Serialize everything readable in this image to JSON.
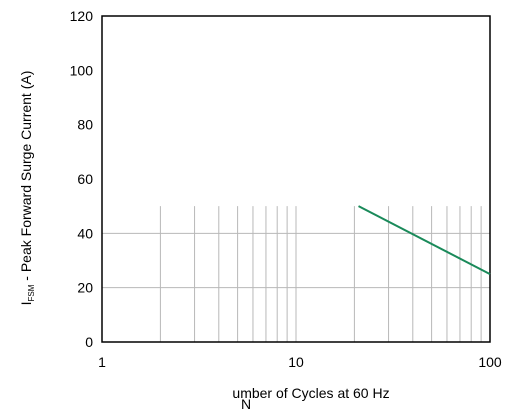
{
  "chart_data": {
    "type": "line",
    "x_scale": "log",
    "xlim": [
      1,
      100
    ],
    "ylim": [
      0,
      120
    ],
    "xticks": [
      1,
      10,
      100
    ],
    "xtick_labels": [
      "1",
      "10",
      "100"
    ],
    "yticks": [
      0,
      20,
      40,
      60,
      80,
      100,
      120
    ],
    "ytick_labels": [
      "0",
      "20",
      "40",
      "60",
      "80",
      "100",
      "120"
    ],
    "xlabel": "umber of Cycles at 60 Hz",
    "xlabel_overlap_char": "N",
    "ylabel_main": "I",
    "ylabel_sub": "FSM",
    "ylabel_rest": " - Peak Forward Surge Current (A)",
    "grid": {
      "horizontal": [
        20,
        40
      ],
      "vertical": [
        2,
        3,
        4,
        5,
        6,
        7,
        8,
        9,
        10,
        20,
        30,
        40,
        50,
        60,
        70,
        80,
        90
      ],
      "vertical_max_y": 50
    },
    "series": [
      {
        "x": [
          21,
          100
        ],
        "y": [
          50,
          25
        ],
        "color": "#1a8a5a"
      }
    ]
  }
}
